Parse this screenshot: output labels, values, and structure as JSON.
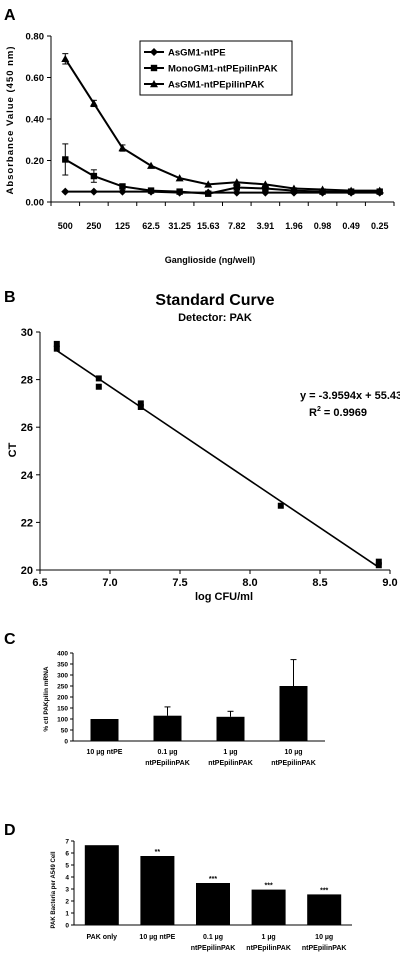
{
  "panels": {
    "A": {
      "letter": "A",
      "chart_data": {
        "type": "line",
        "categories": [
          "500",
          "250",
          "125",
          "62.5",
          "31.25",
          "15.63",
          "7.82",
          "3.91",
          "1.96",
          "0.98",
          "0.49",
          "0.25"
        ],
        "ylim": [
          0,
          0.8
        ],
        "yticks": [
          "0.00",
          "0.20",
          "0.40",
          "0.60",
          "0.80"
        ],
        "ylabel": "Absorbance Value (450 nm)",
        "xlabel": "Ganglioside (ng/well)",
        "legend_position": "top-center",
        "series": [
          {
            "name": "AsGM1-ntPE",
            "marker": "diamond",
            "values": [
              0.05,
              0.05,
              0.05,
              0.05,
              0.045,
              0.045,
              0.045,
              0.045,
              0.045,
              0.045,
              0.045,
              0.045
            ],
            "err": [
              0.008,
              0.008,
              0.008,
              0.006,
              0.005,
              0.005,
              0.005,
              0.005,
              0.005,
              0.005,
              0.005,
              0.005
            ]
          },
          {
            "name": "MonoGM1-ntPEpilinPAK",
            "marker": "square",
            "values": [
              0.205,
              0.125,
              0.075,
              0.055,
              0.05,
              0.04,
              0.07,
              0.065,
              0.055,
              0.05,
              0.05,
              0.05
            ],
            "err": [
              0.075,
              0.03,
              0.01,
              0.008,
              0.006,
              0.006,
              0.01,
              0.008,
              0.006,
              0.006,
              0.006,
              0.006
            ]
          },
          {
            "name": "AsGM1-ntPEpilinPAK",
            "marker": "triangle",
            "values": [
              0.69,
              0.475,
              0.26,
              0.175,
              0.115,
              0.085,
              0.095,
              0.085,
              0.065,
              0.06,
              0.055,
              0.055
            ],
            "err": [
              0.025,
              0.015,
              0.015,
              0.012,
              0.008,
              0.008,
              0.008,
              0.008,
              0.006,
              0.006,
              0.006,
              0.006
            ]
          }
        ]
      }
    },
    "B": {
      "letter": "B",
      "chart_data": {
        "type": "scatter",
        "title": "Standard Curve",
        "subtitle": "Detector:  PAK",
        "xlabel": "log CFU/ml",
        "ylabel": "CT",
        "xlim": [
          6.5,
          9.0
        ],
        "ylim": [
          20,
          30
        ],
        "xticks": [
          "6.5",
          "7.0",
          "7.5",
          "8.0",
          "8.5",
          "9.0"
        ],
        "yticks": [
          "20",
          "22",
          "24",
          "26",
          "28",
          "30"
        ],
        "points": [
          {
            "x": 6.62,
            "y": 29.5
          },
          {
            "x": 6.62,
            "y": 29.3
          },
          {
            "x": 6.92,
            "y": 28.05
          },
          {
            "x": 6.92,
            "y": 27.7
          },
          {
            "x": 7.22,
            "y": 27.0
          },
          {
            "x": 7.22,
            "y": 26.85
          },
          {
            "x": 8.22,
            "y": 22.7
          },
          {
            "x": 8.92,
            "y": 20.35
          },
          {
            "x": 8.92,
            "y": 20.2
          }
        ],
        "trendline": {
          "slope": -3.9594,
          "intercept": 55.43,
          "x_range": [
            6.62,
            8.92
          ]
        },
        "equation": "y = -3.9594x + 55.43",
        "r2_prefix": "R",
        "r2_sup": "2",
        "r2_value": " = 0.9969"
      }
    },
    "C": {
      "letter": "C",
      "chart_data": {
        "type": "bar",
        "ylabel": "% ctl PAKpilin mRNA",
        "ylim": [
          0,
          400
        ],
        "yticks": [
          "0",
          "50",
          "100",
          "150",
          "200",
          "250",
          "300",
          "350",
          "400"
        ],
        "categories": [
          {
            "line1": "10 µg ntPE",
            "line2": ""
          },
          {
            "line1": "0.1 µg",
            "line2": "ntPEpilinPAK"
          },
          {
            "line1": "1 µg",
            "line2": "ntPEpilinPAK"
          },
          {
            "line1": "10 µg",
            "line2": "ntPEpilinPAK"
          }
        ],
        "values": [
          100,
          115,
          110,
          250
        ],
        "err": [
          0,
          40,
          25,
          120
        ]
      }
    },
    "D": {
      "letter": "D",
      "chart_data": {
        "type": "bar",
        "ylabel": "PAK Bacteria per A549 Cell",
        "ylim": [
          0,
          7
        ],
        "yticks": [
          "0",
          "1",
          "2",
          "3",
          "4",
          "5",
          "6",
          "7"
        ],
        "categories": [
          {
            "line1": "PAK only",
            "line2": ""
          },
          {
            "line1": "10 µg ntPE",
            "line2": ""
          },
          {
            "line1": "0.1 µg",
            "line2": "ntPEpilinPAK"
          },
          {
            "line1": "1 µg",
            "line2": "ntPEpilinPAK"
          },
          {
            "line1": "10 µg",
            "line2": "ntPEpilinPAK"
          }
        ],
        "values": [
          6.65,
          5.75,
          3.5,
          2.95,
          2.55
        ],
        "annotations": [
          "",
          "**",
          "***",
          "***",
          "***"
        ]
      }
    }
  }
}
